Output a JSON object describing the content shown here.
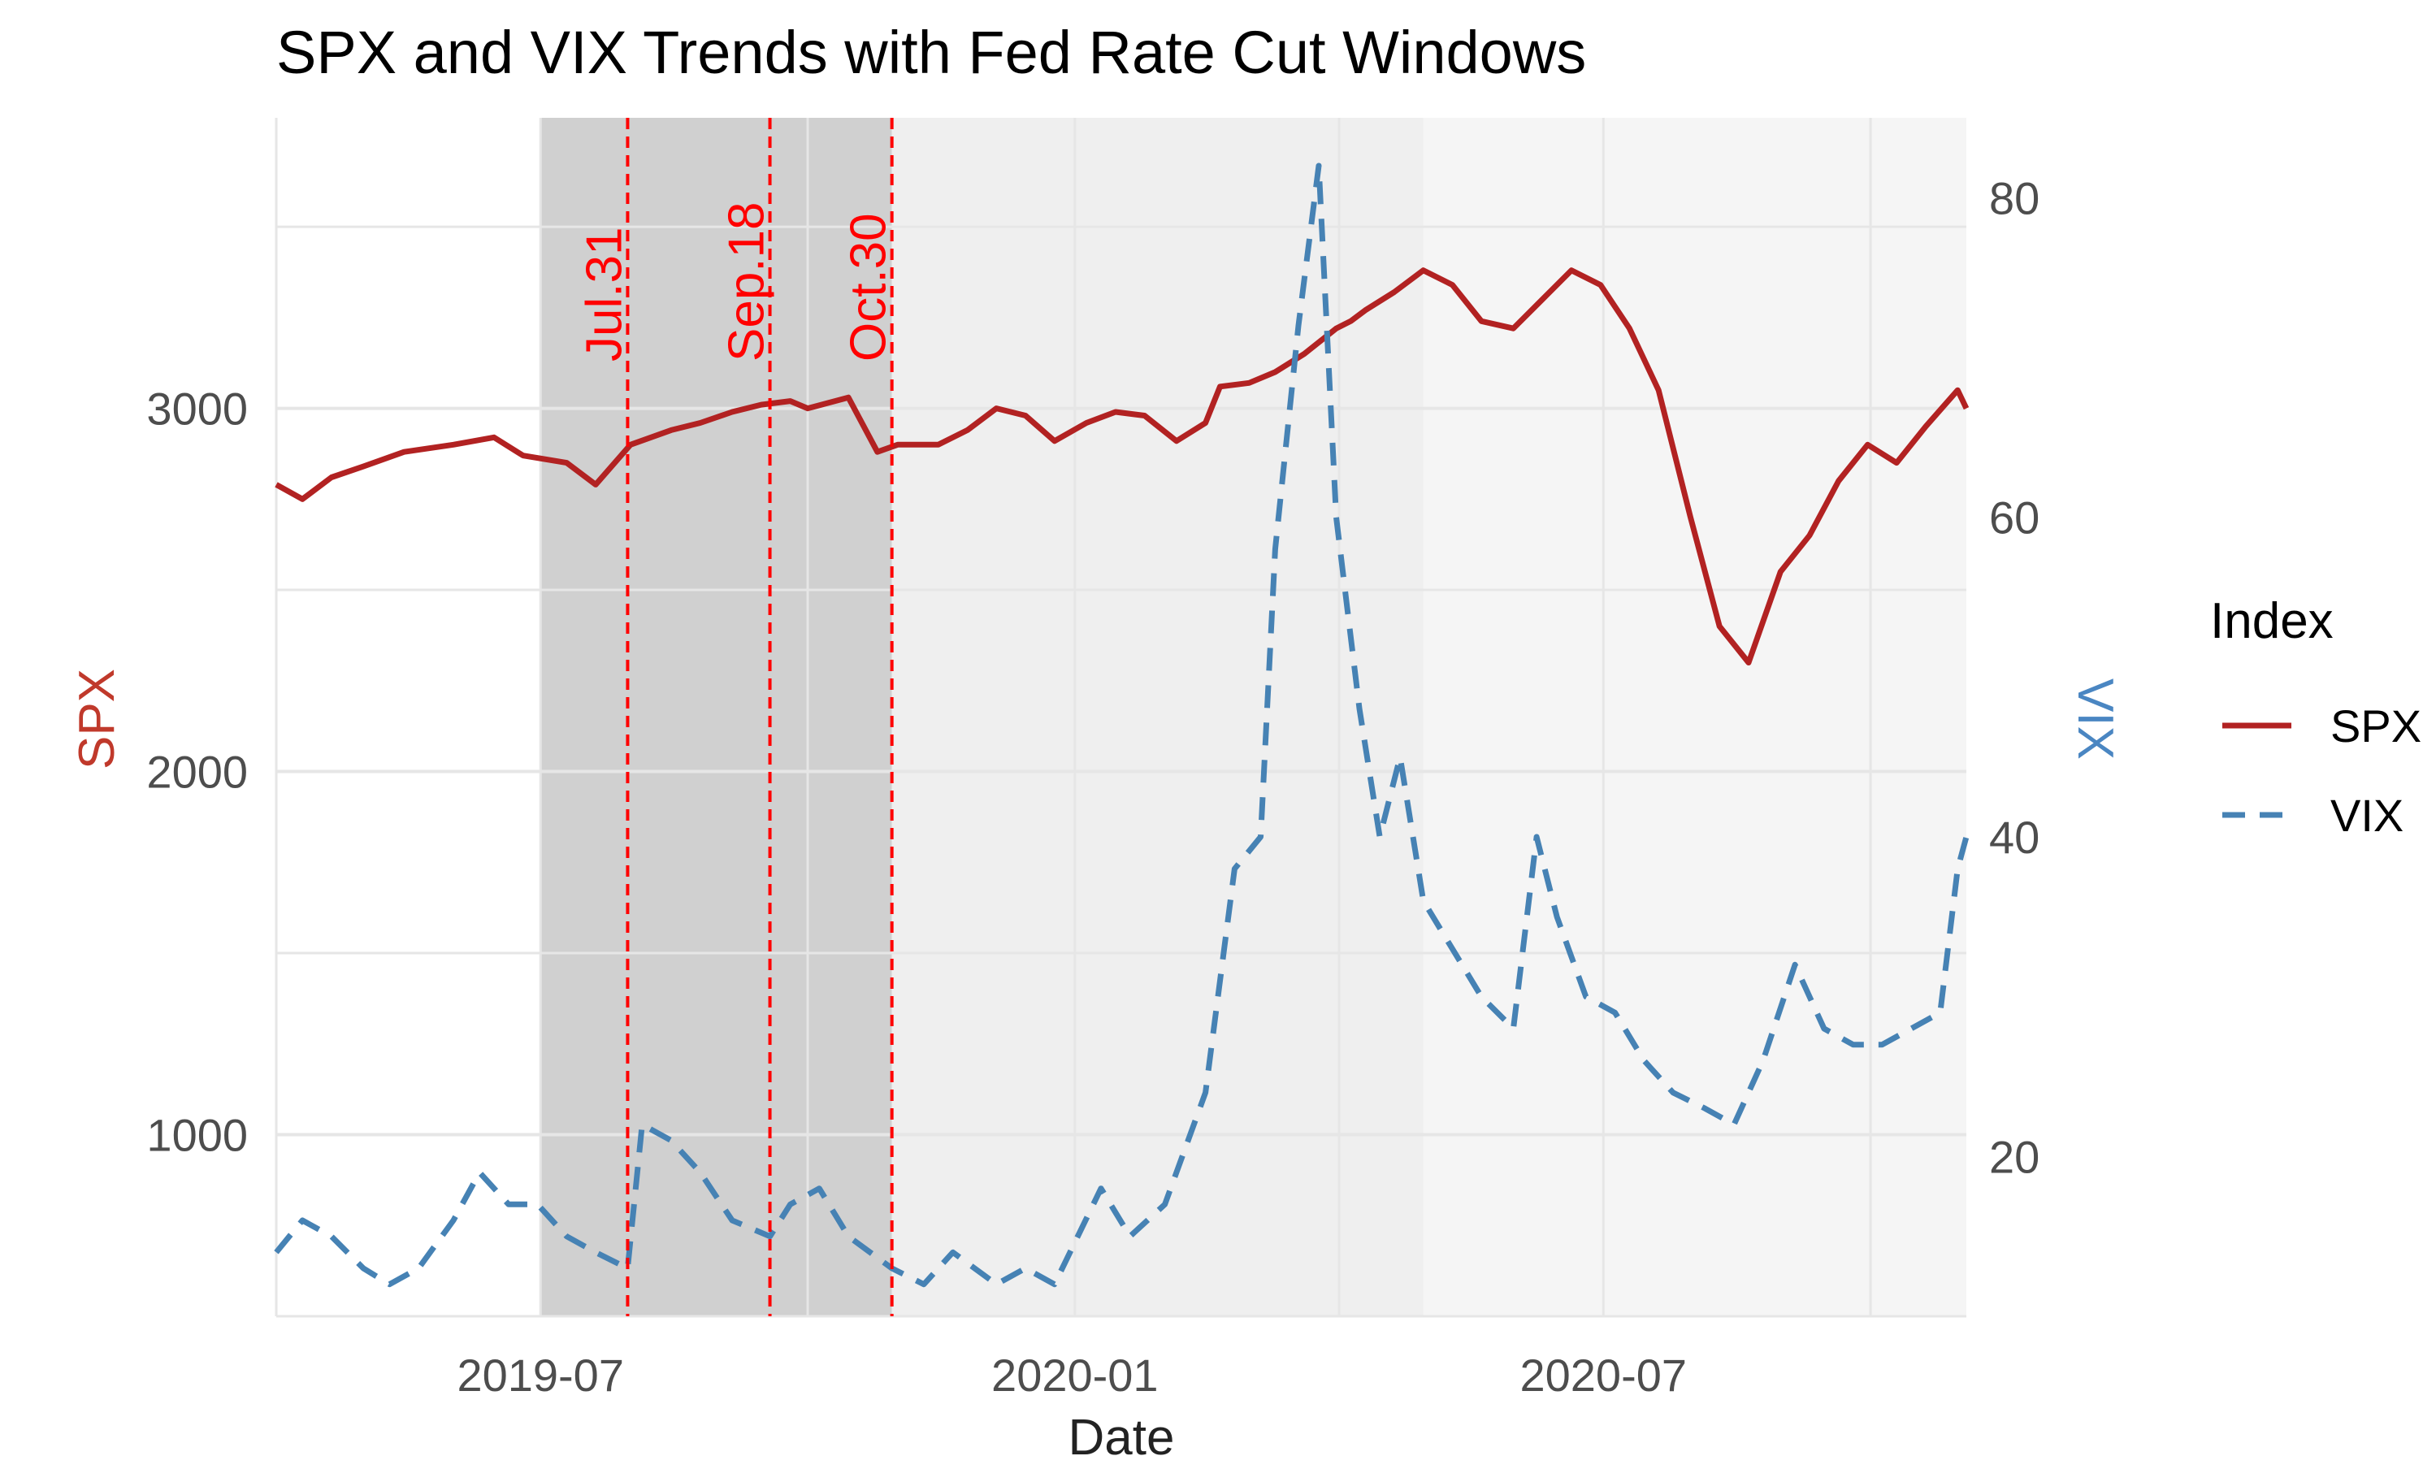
{
  "chart_data": {
    "type": "line",
    "title": "SPX and VIX Trends with Fed Rate Cut Windows",
    "xlabel": "Date",
    "ylabel_left": "SPX",
    "ylabel_right": "VIX",
    "x_range": [
      "2019-04-01",
      "2020-11-03"
    ],
    "x_ticks": [
      {
        "date": "2019-07-01",
        "label": "2019-07"
      },
      {
        "date": "2020-01-01",
        "label": "2020-01"
      },
      {
        "date": "2020-07-01",
        "label": "2020-07"
      }
    ],
    "y_left": {
      "range": [
        500,
        3800
      ],
      "ticks": [
        1000,
        2000,
        3000
      ],
      "minor": [
        500,
        1500,
        2500,
        3500
      ]
    },
    "y_right": {
      "range": [
        10,
        85
      ],
      "ticks": [
        20,
        40,
        60,
        80
      ],
      "minor": [
        10,
        30,
        50,
        70
      ]
    },
    "shaded_windows": [
      {
        "start": "2019-07-01",
        "end": "2019-10-30",
        "color": "#d0d0d0"
      },
      {
        "start": "2019-10-30",
        "end": "2020-04-30",
        "color": "#efefef"
      },
      {
        "start": "2020-04-30",
        "end": "2020-11-03",
        "color": "#f5f5f5"
      }
    ],
    "events": [
      {
        "date": "2019-07-31",
        "label": "Jul.31"
      },
      {
        "date": "2019-09-18",
        "label": "Sep.18"
      },
      {
        "date": "2019-10-30",
        "label": "Oct.30"
      }
    ],
    "legend": {
      "title": "Index",
      "position": "right"
    },
    "series": [
      {
        "name": "SPX",
        "axis": "left",
        "color": "#b22222",
        "dash": "solid",
        "points": [
          [
            "2019-04-01",
            2790
          ],
          [
            "2019-04-10",
            2750
          ],
          [
            "2019-04-20",
            2810
          ],
          [
            "2019-05-01",
            2840
          ],
          [
            "2019-05-15",
            2880
          ],
          [
            "2019-06-01",
            2900
          ],
          [
            "2019-06-15",
            2920
          ],
          [
            "2019-06-25",
            2870
          ],
          [
            "2019-07-10",
            2850
          ],
          [
            "2019-07-20",
            2790
          ],
          [
            "2019-08-01",
            2900
          ],
          [
            "2019-08-15",
            2940
          ],
          [
            "2019-08-25",
            2960
          ],
          [
            "2019-09-05",
            2990
          ],
          [
            "2019-09-15",
            3010
          ],
          [
            "2019-09-25",
            3020
          ],
          [
            "2019-10-01",
            3000
          ],
          [
            "2019-10-15",
            3030
          ],
          [
            "2019-10-25",
            2880
          ],
          [
            "2019-11-01",
            2900
          ],
          [
            "2019-11-15",
            2900
          ],
          [
            "2019-11-25",
            2940
          ],
          [
            "2019-12-05",
            3000
          ],
          [
            "2019-12-15",
            2980
          ],
          [
            "2019-12-25",
            2910
          ],
          [
            "2020-01-05",
            2960
          ],
          [
            "2020-01-15",
            2990
          ],
          [
            "2020-01-25",
            2980
          ],
          [
            "2020-02-05",
            2910
          ],
          [
            "2020-02-15",
            2960
          ],
          [
            "2020-02-20",
            3060
          ],
          [
            "2020-03-01",
            3070
          ],
          [
            "2020-03-10",
            3100
          ],
          [
            "2020-03-20",
            3150
          ],
          [
            "2020-03-31",
            3220
          ],
          [
            "2020-04-05",
            3240
          ],
          [
            "2020-04-10",
            3270
          ],
          [
            "2020-04-20",
            3320
          ],
          [
            "2020-04-30",
            3380
          ],
          [
            "2020-05-10",
            3340
          ],
          [
            "2020-05-20",
            3240
          ],
          [
            "2020-05-31",
            3220
          ],
          [
            "2020-06-10",
            3300
          ],
          [
            "2020-06-20",
            3380
          ],
          [
            "2020-06-30",
            3340
          ],
          [
            "2020-07-10",
            3220
          ],
          [
            "2020-07-20",
            3050
          ],
          [
            "2020-07-31",
            2700
          ],
          [
            "2020-08-10",
            2400
          ],
          [
            "2020-08-20",
            2300
          ],
          [
            "2020-08-31",
            2550
          ],
          [
            "2020-09-10",
            2650
          ],
          [
            "2020-09-20",
            2800
          ],
          [
            "2020-09-30",
            2900
          ],
          [
            "2020-10-10",
            2850
          ],
          [
            "2020-10-20",
            2950
          ],
          [
            "2020-10-31",
            3050
          ],
          [
            "2020-11-03",
            3000
          ]
        ]
      },
      {
        "name": "VIX",
        "axis": "right",
        "color": "#4682b4",
        "dash": "dashed",
        "points": [
          [
            "2019-04-01",
            14
          ],
          [
            "2019-04-10",
            16
          ],
          [
            "2019-04-20",
            15
          ],
          [
            "2019-05-01",
            13
          ],
          [
            "2019-05-10",
            12
          ],
          [
            "2019-05-20",
            13
          ],
          [
            "2019-06-01",
            16
          ],
          [
            "2019-06-10",
            19
          ],
          [
            "2019-06-20",
            17
          ],
          [
            "2019-06-30",
            17
          ],
          [
            "2019-07-10",
            15
          ],
          [
            "2019-07-20",
            14
          ],
          [
            "2019-07-31",
            13
          ],
          [
            "2019-08-05",
            22
          ],
          [
            "2019-08-15",
            21
          ],
          [
            "2019-08-25",
            19
          ],
          [
            "2019-09-05",
            16
          ],
          [
            "2019-09-18",
            15
          ],
          [
            "2019-09-25",
            17
          ],
          [
            "2019-10-05",
            18
          ],
          [
            "2019-10-15",
            15
          ],
          [
            "2019-10-30",
            13
          ],
          [
            "2019-11-10",
            12
          ],
          [
            "2019-11-20",
            14
          ],
          [
            "2019-12-05",
            12
          ],
          [
            "2019-12-15",
            13
          ],
          [
            "2019-12-25",
            12
          ],
          [
            "2020-01-10",
            18
          ],
          [
            "2020-01-20",
            15
          ],
          [
            "2020-02-01",
            17
          ],
          [
            "2020-02-15",
            24
          ],
          [
            "2020-02-25",
            38
          ],
          [
            "2020-03-05",
            40
          ],
          [
            "2020-03-10",
            58
          ],
          [
            "2020-03-18",
            72
          ],
          [
            "2020-03-25",
            82
          ],
          [
            "2020-03-31",
            60
          ],
          [
            "2020-04-08",
            48
          ],
          [
            "2020-04-15",
            40
          ],
          [
            "2020-04-22",
            45
          ],
          [
            "2020-04-30",
            36
          ],
          [
            "2020-05-10",
            33
          ],
          [
            "2020-05-20",
            30
          ],
          [
            "2020-05-31",
            28
          ],
          [
            "2020-06-08",
            40
          ],
          [
            "2020-06-15",
            35
          ],
          [
            "2020-06-25",
            30
          ],
          [
            "2020-07-05",
            29
          ],
          [
            "2020-07-15",
            26
          ],
          [
            "2020-07-25",
            24
          ],
          [
            "2020-08-05",
            23
          ],
          [
            "2020-08-15",
            22
          ],
          [
            "2020-08-25",
            26
          ],
          [
            "2020-09-05",
            32
          ],
          [
            "2020-09-15",
            28
          ],
          [
            "2020-09-25",
            27
          ],
          [
            "2020-10-05",
            27
          ],
          [
            "2020-10-15",
            28
          ],
          [
            "2020-10-25",
            29
          ],
          [
            "2020-10-31",
            38
          ],
          [
            "2020-11-03",
            40
          ]
        ]
      }
    ]
  }
}
